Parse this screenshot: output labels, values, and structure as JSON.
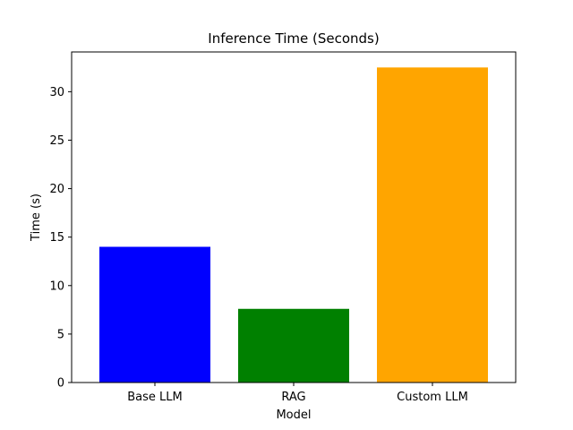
{
  "chart_data": {
    "type": "bar",
    "title": "Inference Time (Seconds)",
    "xlabel": "Model",
    "ylabel": "Time (s)",
    "categories": [
      "Base LLM",
      "RAG",
      "Custom LLM"
    ],
    "values": [
      14.0,
      7.6,
      32.5
    ],
    "colors": [
      "#0000ff",
      "#008000",
      "#ffa500"
    ],
    "ylim": [
      0,
      34.1
    ],
    "yticks": [
      0,
      5,
      10,
      15,
      20,
      25,
      30
    ],
    "grid": false,
    "legend": "none"
  }
}
